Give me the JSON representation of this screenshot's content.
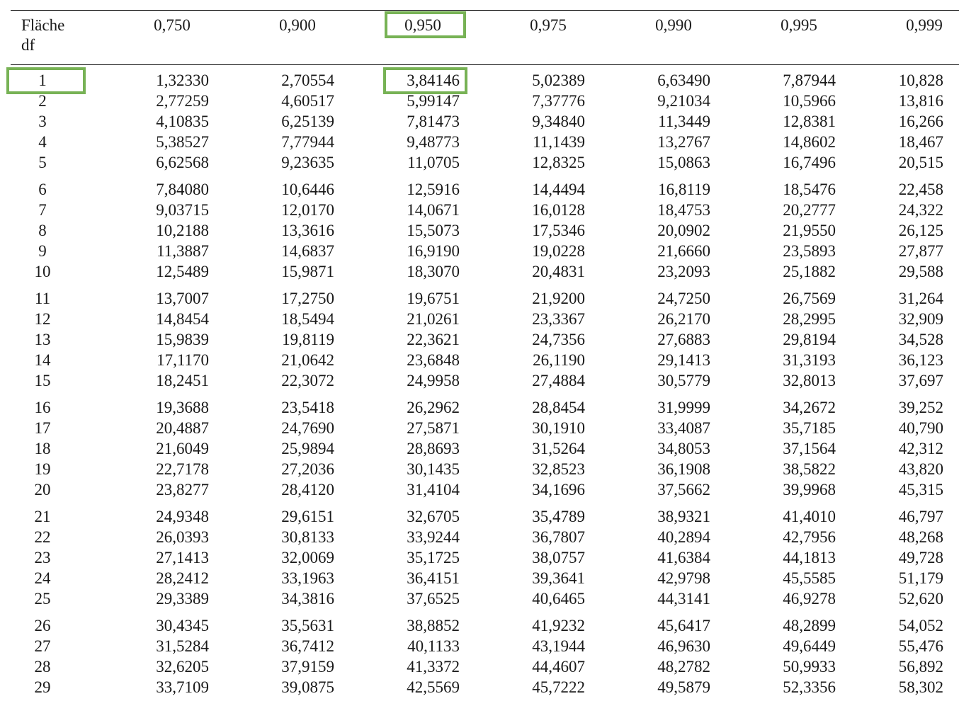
{
  "table": {
    "header_area_label": "Fläche",
    "header_df_label": "df",
    "columns": [
      "0,750",
      "0,900",
      "0,950",
      "0,975",
      "0,990",
      "0,995",
      "0,999"
    ],
    "rows": [
      {
        "df": "1",
        "values": [
          "1,32330",
          "2,70554",
          "3,84146",
          "5,02389",
          "6,63490",
          "7,87944",
          "10,828"
        ]
      },
      {
        "df": "2",
        "values": [
          "2,77259",
          "4,60517",
          "5,99147",
          "7,37776",
          "9,21034",
          "10,5966",
          "13,816"
        ]
      },
      {
        "df": "3",
        "values": [
          "4,10835",
          "6,25139",
          "7,81473",
          "9,34840",
          "11,3449",
          "12,8381",
          "16,266"
        ]
      },
      {
        "df": "4",
        "values": [
          "5,38527",
          "7,77944",
          "9,48773",
          "11,1439",
          "13,2767",
          "14,8602",
          "18,467"
        ]
      },
      {
        "df": "5",
        "values": [
          "6,62568",
          "9,23635",
          "11,0705",
          "12,8325",
          "15,0863",
          "16,7496",
          "20,515"
        ]
      },
      {
        "df": "6",
        "values": [
          "7,84080",
          "10,6446",
          "12,5916",
          "14,4494",
          "16,8119",
          "18,5476",
          "22,458"
        ]
      },
      {
        "df": "7",
        "values": [
          "9,03715",
          "12,0170",
          "14,0671",
          "16,0128",
          "18,4753",
          "20,2777",
          "24,322"
        ]
      },
      {
        "df": "8",
        "values": [
          "10,2188",
          "13,3616",
          "15,5073",
          "17,5346",
          "20,0902",
          "21,9550",
          "26,125"
        ]
      },
      {
        "df": "9",
        "values": [
          "11,3887",
          "14,6837",
          "16,9190",
          "19,0228",
          "21,6660",
          "23,5893",
          "27,877"
        ]
      },
      {
        "df": "10",
        "values": [
          "12,5489",
          "15,9871",
          "18,3070",
          "20,4831",
          "23,2093",
          "25,1882",
          "29,588"
        ]
      },
      {
        "df": "11",
        "values": [
          "13,7007",
          "17,2750",
          "19,6751",
          "21,9200",
          "24,7250",
          "26,7569",
          "31,264"
        ]
      },
      {
        "df": "12",
        "values": [
          "14,8454",
          "18,5494",
          "21,0261",
          "23,3367",
          "26,2170",
          "28,2995",
          "32,909"
        ]
      },
      {
        "df": "13",
        "values": [
          "15,9839",
          "19,8119",
          "22,3621",
          "24,7356",
          "27,6883",
          "29,8194",
          "34,528"
        ]
      },
      {
        "df": "14",
        "values": [
          "17,1170",
          "21,0642",
          "23,6848",
          "26,1190",
          "29,1413",
          "31,3193",
          "36,123"
        ]
      },
      {
        "df": "15",
        "values": [
          "18,2451",
          "22,3072",
          "24,9958",
          "27,4884",
          "30,5779",
          "32,8013",
          "37,697"
        ]
      },
      {
        "df": "16",
        "values": [
          "19,3688",
          "23,5418",
          "26,2962",
          "28,8454",
          "31,9999",
          "34,2672",
          "39,252"
        ]
      },
      {
        "df": "17",
        "values": [
          "20,4887",
          "24,7690",
          "27,5871",
          "30,1910",
          "33,4087",
          "35,7185",
          "40,790"
        ]
      },
      {
        "df": "18",
        "values": [
          "21,6049",
          "25,9894",
          "28,8693",
          "31,5264",
          "34,8053",
          "37,1564",
          "42,312"
        ]
      },
      {
        "df": "19",
        "values": [
          "22,7178",
          "27,2036",
          "30,1435",
          "32,8523",
          "36,1908",
          "38,5822",
          "43,820"
        ]
      },
      {
        "df": "20",
        "values": [
          "23,8277",
          "28,4120",
          "31,4104",
          "34,1696",
          "37,5662",
          "39,9968",
          "45,315"
        ]
      },
      {
        "df": "21",
        "values": [
          "24,9348",
          "29,6151",
          "32,6705",
          "35,4789",
          "38,9321",
          "41,4010",
          "46,797"
        ]
      },
      {
        "df": "22",
        "values": [
          "26,0393",
          "30,8133",
          "33,9244",
          "36,7807",
          "40,2894",
          "42,7956",
          "48,268"
        ]
      },
      {
        "df": "23",
        "values": [
          "27,1413",
          "32,0069",
          "35,1725",
          "38,0757",
          "41,6384",
          "44,1813",
          "49,728"
        ]
      },
      {
        "df": "24",
        "values": [
          "28,2412",
          "33,1963",
          "36,4151",
          "39,3641",
          "42,9798",
          "45,5585",
          "51,179"
        ]
      },
      {
        "df": "25",
        "values": [
          "29,3389",
          "34,3816",
          "37,6525",
          "40,6465",
          "44,3141",
          "46,9278",
          "52,620"
        ]
      },
      {
        "df": "26",
        "values": [
          "30,4345",
          "35,5631",
          "38,8852",
          "41,9232",
          "45,6417",
          "48,2899",
          "54,052"
        ]
      },
      {
        "df": "27",
        "values": [
          "31,5284",
          "36,7412",
          "40,1133",
          "43,1944",
          "46,9630",
          "49,6449",
          "55,476"
        ]
      },
      {
        "df": "28",
        "values": [
          "32,6205",
          "37,9159",
          "41,3372",
          "44,4607",
          "48,2782",
          "50,9933",
          "56,892"
        ]
      },
      {
        "df": "29",
        "values": [
          "33,7109",
          "39,0875",
          "42,5569",
          "45,7222",
          "49,5879",
          "52,3356",
          "58,302"
        ]
      }
    ]
  },
  "highlights": {
    "color": "#77b255",
    "column": "0,950",
    "df_row": "1",
    "cell_value": "3,84146"
  }
}
